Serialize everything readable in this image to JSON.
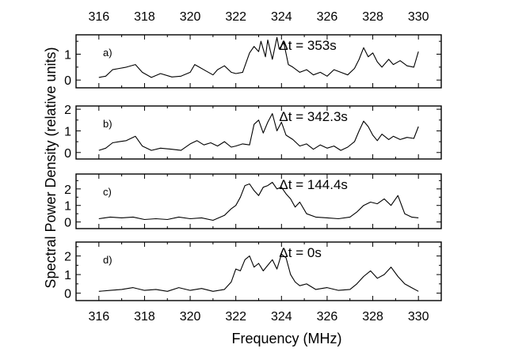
{
  "chart_data": {
    "type": "line",
    "xlabel": "Frequency (MHz)",
    "ylabel": "Spectral Power Density (relative units)",
    "xlim": [
      315,
      331
    ],
    "x_ticks": [
      316,
      318,
      320,
      322,
      324,
      326,
      328,
      330
    ],
    "x_tick_labels": [
      "316",
      "318",
      "320",
      "322",
      "324",
      "326",
      "328",
      "330"
    ],
    "top_axis_labels": true,
    "grid": false,
    "panels": [
      {
        "label": "a)",
        "annotation": "Δt = 353s",
        "ylim": [
          -0.3,
          1.75
        ],
        "y_ticks": [
          0,
          1
        ],
        "y_tick_labels": [
          "0",
          "1"
        ],
        "x": [
          316.0,
          316.3,
          316.6,
          316.9,
          317.2,
          317.6,
          317.9,
          318.3,
          318.7,
          319.2,
          319.6,
          320.0,
          320.2,
          320.4,
          320.7,
          321.0,
          321.2,
          321.5,
          321.8,
          322.0,
          322.3,
          322.6,
          322.8,
          323.0,
          323.1,
          323.3,
          323.4,
          323.6,
          323.8,
          323.9,
          324.1,
          324.3,
          324.5,
          324.8,
          325.1,
          325.4,
          325.7,
          326.0,
          326.3,
          326.6,
          326.9,
          327.2,
          327.4,
          327.6,
          327.8,
          328.0,
          328.2,
          328.4,
          328.7,
          328.9,
          329.2,
          329.5,
          329.8,
          330.0
        ],
        "y": [
          0.1,
          0.15,
          0.4,
          0.45,
          0.5,
          0.6,
          0.3,
          0.1,
          0.25,
          0.12,
          0.15,
          0.3,
          0.6,
          0.5,
          0.35,
          0.2,
          0.4,
          0.55,
          0.3,
          0.25,
          0.3,
          1.05,
          1.3,
          1.1,
          1.5,
          0.9,
          1.55,
          0.8,
          1.65,
          1.2,
          1.45,
          0.6,
          0.5,
          0.3,
          0.4,
          0.2,
          0.3,
          0.15,
          0.4,
          0.3,
          0.2,
          0.45,
          0.8,
          1.25,
          0.9,
          1.05,
          0.7,
          0.5,
          0.8,
          0.6,
          0.75,
          0.55,
          0.5,
          1.1
        ]
      },
      {
        "label": "b)",
        "annotation": "Δt = 342.3s",
        "ylim": [
          -0.3,
          2.15
        ],
        "y_ticks": [
          0,
          1,
          2
        ],
        "y_tick_labels": [
          "0",
          "1",
          "2"
        ],
        "x": [
          316.0,
          316.3,
          316.6,
          316.9,
          317.2,
          317.6,
          317.9,
          318.3,
          318.7,
          319.2,
          319.6,
          320.0,
          320.3,
          320.6,
          320.9,
          321.2,
          321.5,
          321.8,
          322.0,
          322.3,
          322.6,
          322.8,
          323.0,
          323.2,
          323.4,
          323.6,
          323.8,
          324.0,
          324.2,
          324.5,
          324.8,
          325.1,
          325.4,
          325.7,
          326.0,
          326.3,
          326.6,
          326.9,
          327.2,
          327.4,
          327.6,
          327.8,
          328.0,
          328.2,
          328.4,
          328.7,
          328.9,
          329.2,
          329.5,
          329.8,
          330.0
        ],
        "y": [
          0.1,
          0.2,
          0.45,
          0.5,
          0.55,
          0.75,
          0.3,
          0.1,
          0.2,
          0.15,
          0.1,
          0.4,
          0.55,
          0.35,
          0.45,
          0.3,
          0.5,
          0.25,
          0.3,
          0.4,
          0.35,
          1.3,
          1.5,
          0.9,
          1.4,
          1.8,
          1.0,
          1.4,
          0.8,
          0.6,
          0.3,
          0.4,
          0.15,
          0.35,
          0.2,
          0.3,
          0.1,
          0.25,
          0.5,
          1.0,
          1.45,
          1.2,
          0.8,
          0.55,
          0.85,
          0.6,
          0.75,
          0.6,
          0.7,
          0.65,
          1.2
        ]
      },
      {
        "label": "c)",
        "annotation": "Δt = 144.4s",
        "ylim": [
          -0.4,
          2.9
        ],
        "y_ticks": [
          0,
          1,
          2
        ],
        "y_tick_labels": [
          "0",
          "1",
          "2"
        ],
        "x": [
          316.0,
          316.5,
          317.0,
          317.5,
          318.0,
          318.5,
          319.0,
          319.5,
          320.0,
          320.5,
          321.0,
          321.5,
          321.8,
          322.0,
          322.2,
          322.4,
          322.6,
          322.8,
          323.0,
          323.2,
          323.4,
          323.6,
          323.8,
          324.0,
          324.2,
          324.4,
          324.6,
          324.8,
          325.1,
          325.5,
          326.0,
          326.5,
          327.0,
          327.3,
          327.6,
          327.9,
          328.2,
          328.5,
          328.8,
          329.1,
          329.4,
          329.7,
          330.0
        ],
        "y": [
          0.2,
          0.3,
          0.25,
          0.3,
          0.15,
          0.2,
          0.15,
          0.3,
          0.2,
          0.25,
          0.1,
          0.4,
          0.8,
          1.0,
          1.5,
          2.2,
          2.3,
          1.9,
          1.6,
          2.1,
          2.2,
          2.4,
          2.0,
          2.1,
          1.7,
          1.4,
          0.9,
          1.2,
          0.5,
          0.3,
          0.25,
          0.2,
          0.3,
          0.6,
          1.0,
          1.2,
          1.1,
          1.4,
          1.0,
          1.6,
          0.5,
          0.3,
          0.25
        ]
      },
      {
        "label": "d)",
        "annotation": "Δt = 0s",
        "ylim": [
          -0.4,
          2.75
        ],
        "y_ticks": [
          0,
          1,
          2
        ],
        "y_tick_labels": [
          "0",
          "1",
          "2"
        ],
        "x": [
          316.0,
          316.5,
          317.0,
          317.5,
          318.0,
          318.5,
          319.0,
          319.5,
          320.0,
          320.5,
          321.0,
          321.5,
          321.8,
          322.0,
          322.2,
          322.4,
          322.6,
          322.8,
          323.0,
          323.2,
          323.4,
          323.6,
          323.8,
          324.0,
          324.2,
          324.4,
          324.6,
          324.8,
          325.1,
          325.5,
          326.0,
          326.5,
          327.0,
          327.3,
          327.6,
          327.9,
          328.2,
          328.5,
          328.8,
          329.1,
          329.4,
          329.7,
          330.0
        ],
        "y": [
          0.1,
          0.15,
          0.2,
          0.3,
          0.15,
          0.2,
          0.1,
          0.3,
          0.15,
          0.25,
          0.1,
          0.2,
          0.6,
          1.3,
          1.2,
          1.8,
          2.0,
          1.4,
          1.6,
          1.2,
          1.5,
          1.8,
          1.3,
          2.1,
          1.9,
          1.0,
          0.6,
          0.4,
          0.5,
          0.2,
          0.3,
          0.15,
          0.2,
          0.5,
          0.9,
          1.2,
          0.8,
          1.0,
          1.4,
          0.9,
          0.5,
          0.3,
          0.1
        ]
      }
    ]
  }
}
